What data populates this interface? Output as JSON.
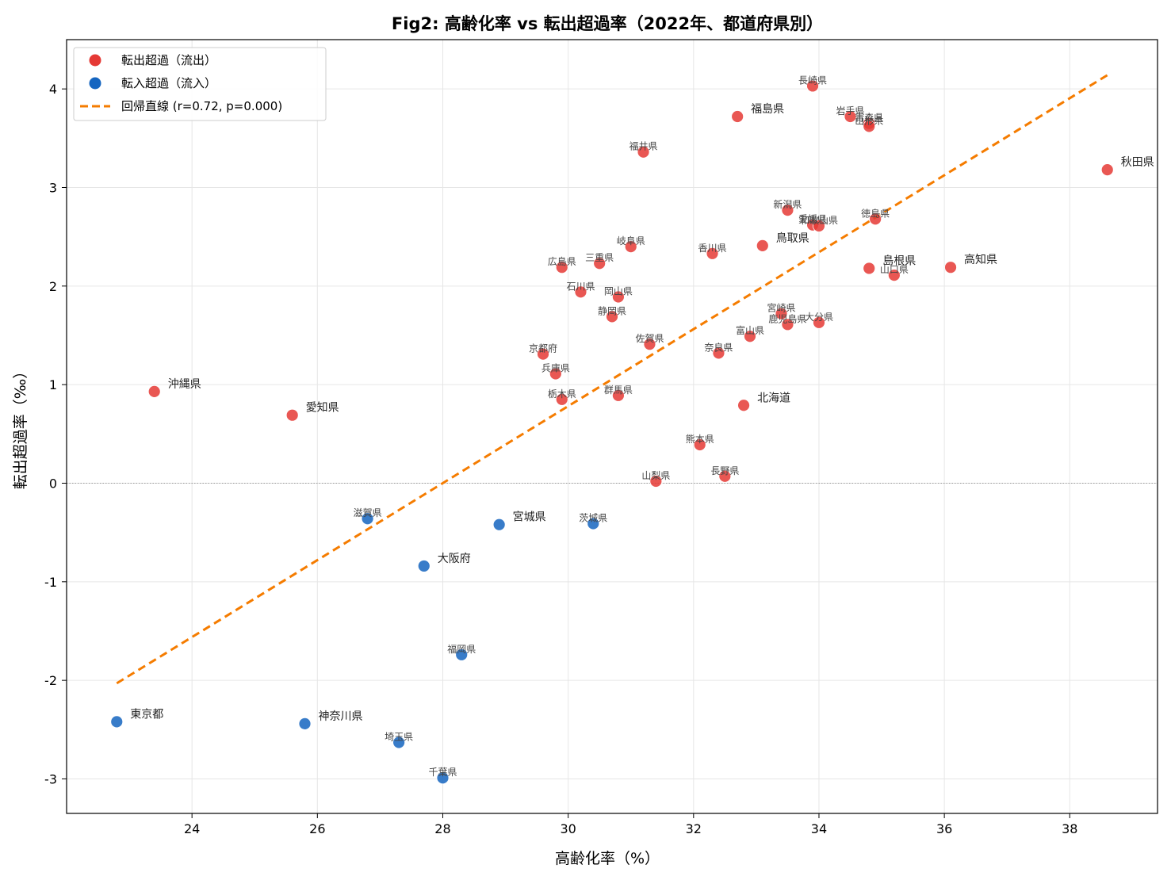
{
  "chart_data": {
    "type": "scatter",
    "title": "Fig2: 高齢化率 vs 転出超過率（2022年、都道府県別）",
    "xlabel": "高齢化率（%）",
    "ylabel": "転出超過率（‰）",
    "xlim": [
      22.0,
      39.4
    ],
    "ylim": [
      -3.35,
      4.5
    ],
    "xticks": [
      24,
      26,
      28,
      30,
      32,
      34,
      36,
      38
    ],
    "yticks": [
      -3,
      -2,
      -1,
      0,
      1,
      2,
      3,
      4
    ],
    "ytick_labels": [
      "-3",
      "-2",
      "-1",
      "0",
      "1",
      "2",
      "3",
      "4"
    ],
    "grid": true,
    "legend_position": "top-left",
    "colors": {
      "outflow": "#e53935",
      "inflow": "#1565c0",
      "regression": "#f57c00",
      "zero_line": "#999999"
    },
    "legend": [
      {
        "label": "転出超過（流出）",
        "kind": "outflow"
      },
      {
        "label": "転入超過（流入）",
        "kind": "inflow"
      },
      {
        "label": "回帰直線 (r=0.72, p=0.000)",
        "kind": "regression"
      }
    ],
    "regression": {
      "x": [
        22.8,
        38.6
      ],
      "y": [
        -2.03,
        4.14
      ]
    },
    "series": [
      {
        "kind": "outflow",
        "points": [
          {
            "name": "長崎県",
            "x": 33.9,
            "y": 4.03,
            "big": false
          },
          {
            "name": "福島県",
            "x": 32.7,
            "y": 3.72,
            "big": true
          },
          {
            "name": "岩手県",
            "x": 34.5,
            "y": 3.72,
            "big": false
          },
          {
            "name": "青森県",
            "x": 34.8,
            "y": 3.65,
            "big": false
          },
          {
            "name": "山形県",
            "x": 34.8,
            "y": 3.62,
            "big": false
          },
          {
            "name": "福井県",
            "x": 31.2,
            "y": 3.36,
            "big": false
          },
          {
            "name": "秋田県",
            "x": 38.6,
            "y": 3.18,
            "big": true
          },
          {
            "name": "新潟県",
            "x": 33.5,
            "y": 2.77,
            "big": false
          },
          {
            "name": "徳島県",
            "x": 34.9,
            "y": 2.68,
            "big": false
          },
          {
            "name": "愛媛県",
            "x": 33.9,
            "y": 2.62,
            "big": false
          },
          {
            "name": "和歌山県",
            "x": 34.0,
            "y": 2.61,
            "big": false
          },
          {
            "name": "鳥取県",
            "x": 33.1,
            "y": 2.41,
            "big": true
          },
          {
            "name": "岐阜県",
            "x": 31.0,
            "y": 2.4,
            "big": false
          },
          {
            "name": "香川県",
            "x": 32.3,
            "y": 2.33,
            "big": false
          },
          {
            "name": "三重県",
            "x": 30.5,
            "y": 2.23,
            "big": false
          },
          {
            "name": "広島県",
            "x": 29.9,
            "y": 2.19,
            "big": false
          },
          {
            "name": "高知県",
            "x": 36.1,
            "y": 2.19,
            "big": true
          },
          {
            "name": "島根県",
            "x": 34.8,
            "y": 2.18,
            "big": true
          },
          {
            "name": "山口県",
            "x": 35.2,
            "y": 2.11,
            "big": false
          },
          {
            "name": "石川県",
            "x": 30.2,
            "y": 1.94,
            "big": false
          },
          {
            "name": "岡山県",
            "x": 30.8,
            "y": 1.89,
            "big": false
          },
          {
            "name": "静岡県",
            "x": 30.7,
            "y": 1.69,
            "big": false
          },
          {
            "name": "宮崎県",
            "x": 33.4,
            "y": 1.72,
            "big": false
          },
          {
            "name": "大分県",
            "x": 34.0,
            "y": 1.63,
            "big": false
          },
          {
            "name": "鹿児島県",
            "x": 33.5,
            "y": 1.61,
            "big": false
          },
          {
            "name": "富山県",
            "x": 32.9,
            "y": 1.49,
            "big": false
          },
          {
            "name": "佐賀県",
            "x": 31.3,
            "y": 1.41,
            "big": false
          },
          {
            "name": "奈良県",
            "x": 32.4,
            "y": 1.32,
            "big": false
          },
          {
            "name": "京都府",
            "x": 29.6,
            "y": 1.31,
            "big": false
          },
          {
            "name": "兵庫県",
            "x": 29.8,
            "y": 1.11,
            "big": false
          },
          {
            "name": "沖縄県",
            "x": 23.4,
            "y": 0.93,
            "big": true
          },
          {
            "name": "群馬県",
            "x": 30.8,
            "y": 0.89,
            "big": false
          },
          {
            "name": "栃木県",
            "x": 29.9,
            "y": 0.85,
            "big": false
          },
          {
            "name": "北海道",
            "x": 32.8,
            "y": 0.79,
            "big": true
          },
          {
            "name": "愛知県",
            "x": 25.6,
            "y": 0.69,
            "big": true
          },
          {
            "name": "熊本県",
            "x": 32.1,
            "y": 0.39,
            "big": false
          },
          {
            "name": "長野県",
            "x": 32.5,
            "y": 0.07,
            "big": false
          },
          {
            "name": "山梨県",
            "x": 31.4,
            "y": 0.02,
            "big": false
          }
        ]
      },
      {
        "kind": "inflow",
        "points": [
          {
            "name": "滋賀県",
            "x": 26.8,
            "y": -0.36,
            "big": false
          },
          {
            "name": "茨城県",
            "x": 30.4,
            "y": -0.41,
            "big": false
          },
          {
            "name": "宮城県",
            "x": 28.9,
            "y": -0.42,
            "big": true
          },
          {
            "name": "大阪府",
            "x": 27.7,
            "y": -0.84,
            "big": true
          },
          {
            "name": "福岡県",
            "x": 28.3,
            "y": -1.74,
            "big": false
          },
          {
            "name": "東京都",
            "x": 22.8,
            "y": -2.42,
            "big": true
          },
          {
            "name": "神奈川県",
            "x": 25.8,
            "y": -2.44,
            "big": true
          },
          {
            "name": "埼玉県",
            "x": 27.3,
            "y": -2.63,
            "big": false
          },
          {
            "name": "千葉県",
            "x": 28.0,
            "y": -2.99,
            "big": false
          }
        ]
      }
    ]
  }
}
